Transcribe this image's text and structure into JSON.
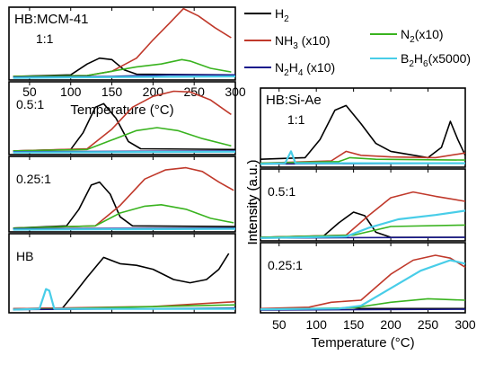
{
  "colors": {
    "H2": "#000000",
    "NH3": "#c0392b",
    "N2": "#39b31f",
    "N2H4": "#1a1a8c",
    "B2H6": "#48cde8"
  },
  "legend": [
    {
      "key": "H2",
      "label": "H",
      "sub": "2",
      "suffix": ""
    },
    {
      "key": "NH3",
      "label": "NH",
      "sub": "3",
      "suffix": " (x10)"
    },
    {
      "key": "N2H4",
      "label": "N",
      "sub": "2",
      "mid": "H",
      "sub2": "4",
      "suffix": " (x10)"
    },
    {
      "key": "N2",
      "label": "N",
      "sub": "2",
      "suffix": "(x10)"
    },
    {
      "key": "B2H6",
      "label": "B",
      "sub": "2",
      "mid": "H",
      "sub2": "6",
      "suffix": "(x5000)"
    }
  ],
  "chart_data": [
    {
      "type": "line",
      "title": "HB:MCM-41",
      "panel_label": "1:1",
      "xlim": [
        25,
        300
      ],
      "x_ticks": [
        "50",
        "100",
        "150",
        "200",
        "250",
        "300"
      ],
      "xlabel": "Temperature (°C)",
      "ylabel": "Intensity (a.u.)",
      "series": [
        {
          "key": "H2",
          "points": [
            [
              30,
              0.05
            ],
            [
              100,
              0.07
            ],
            [
              120,
              0.22
            ],
            [
              135,
              0.3
            ],
            [
              150,
              0.28
            ],
            [
              165,
              0.14
            ],
            [
              180,
              0.08
            ],
            [
              300,
              0.07
            ]
          ]
        },
        {
          "key": "NH3",
          "points": [
            [
              30,
              0.05
            ],
            [
              120,
              0.06
            ],
            [
              150,
              0.12
            ],
            [
              180,
              0.3
            ],
            [
              200,
              0.55
            ],
            [
              220,
              0.78
            ],
            [
              237,
              0.98
            ],
            [
              255,
              0.88
            ],
            [
              275,
              0.72
            ],
            [
              295,
              0.58
            ]
          ]
        },
        {
          "key": "N2",
          "points": [
            [
              30,
              0.05
            ],
            [
              120,
              0.06
            ],
            [
              150,
              0.12
            ],
            [
              180,
              0.18
            ],
            [
              210,
              0.22
            ],
            [
              235,
              0.28
            ],
            [
              245,
              0.26
            ],
            [
              270,
              0.16
            ],
            [
              295,
              0.11
            ]
          ]
        },
        {
          "key": "N2H4",
          "points": [
            [
              30,
              0.04
            ],
            [
              150,
              0.05
            ],
            [
              220,
              0.07
            ],
            [
              300,
              0.07
            ]
          ]
        },
        {
          "key": "B2H6",
          "points": [
            [
              30,
              0.03
            ],
            [
              150,
              0.04
            ],
            [
              300,
              0.05
            ]
          ]
        }
      ]
    },
    {
      "type": "line",
      "panel_label": "0.5:1",
      "xlim": [
        25,
        300
      ],
      "series": [
        {
          "key": "H2",
          "points": [
            [
              30,
              0.05
            ],
            [
              100,
              0.07
            ],
            [
              115,
              0.3
            ],
            [
              130,
              0.65
            ],
            [
              140,
              0.7
            ],
            [
              155,
              0.5
            ],
            [
              170,
              0.18
            ],
            [
              185,
              0.08
            ],
            [
              300,
              0.07
            ]
          ]
        },
        {
          "key": "NH3",
          "points": [
            [
              30,
              0.05
            ],
            [
              120,
              0.08
            ],
            [
              150,
              0.35
            ],
            [
              175,
              0.65
            ],
            [
              200,
              0.8
            ],
            [
              225,
              0.87
            ],
            [
              245,
              0.86
            ],
            [
              270,
              0.75
            ],
            [
              295,
              0.55
            ]
          ]
        },
        {
          "key": "N2",
          "points": [
            [
              30,
              0.05
            ],
            [
              120,
              0.07
            ],
            [
              150,
              0.2
            ],
            [
              180,
              0.33
            ],
            [
              205,
              0.37
            ],
            [
              230,
              0.33
            ],
            [
              260,
              0.22
            ],
            [
              295,
              0.12
            ]
          ]
        },
        {
          "key": "N2H4",
          "points": [
            [
              30,
              0.04
            ],
            [
              300,
              0.05
            ]
          ]
        },
        {
          "key": "B2H6",
          "points": [
            [
              30,
              0.03
            ],
            [
              300,
              0.04
            ]
          ]
        }
      ]
    },
    {
      "type": "line",
      "panel_label": "0.25:1",
      "xlim": [
        25,
        300
      ],
      "series": [
        {
          "key": "H2",
          "points": [
            [
              30,
              0.05
            ],
            [
              95,
              0.08
            ],
            [
              110,
              0.3
            ],
            [
              125,
              0.62
            ],
            [
              135,
              0.66
            ],
            [
              148,
              0.5
            ],
            [
              160,
              0.2
            ],
            [
              175,
              0.08
            ],
            [
              300,
              0.07
            ]
          ]
        },
        {
          "key": "NH3",
          "points": [
            [
              30,
              0.05
            ],
            [
              130,
              0.08
            ],
            [
              160,
              0.35
            ],
            [
              190,
              0.7
            ],
            [
              215,
              0.82
            ],
            [
              240,
              0.85
            ],
            [
              260,
              0.8
            ],
            [
              280,
              0.66
            ],
            [
              298,
              0.55
            ]
          ]
        },
        {
          "key": "N2",
          "points": [
            [
              30,
              0.05
            ],
            [
              130,
              0.08
            ],
            [
              160,
              0.25
            ],
            [
              190,
              0.34
            ],
            [
              210,
              0.36
            ],
            [
              240,
              0.3
            ],
            [
              270,
              0.18
            ],
            [
              298,
              0.12
            ]
          ]
        },
        {
          "key": "N2H4",
          "points": [
            [
              30,
              0.04
            ],
            [
              300,
              0.05
            ]
          ]
        },
        {
          "key": "B2H6",
          "points": [
            [
              30,
              0.03
            ],
            [
              300,
              0.04
            ]
          ]
        }
      ]
    },
    {
      "type": "line",
      "panel_label": "HB",
      "xlim": [
        25,
        300
      ],
      "series": [
        {
          "key": "H2",
          "points": [
            [
              30,
              0.05
            ],
            [
              90,
              0.06
            ],
            [
              105,
              0.25
            ],
            [
              120,
              0.45
            ],
            [
              140,
              0.7
            ],
            [
              160,
              0.62
            ],
            [
              180,
              0.6
            ],
            [
              200,
              0.55
            ],
            [
              225,
              0.42
            ],
            [
              245,
              0.38
            ],
            [
              265,
              0.42
            ],
            [
              280,
              0.55
            ],
            [
              292,
              0.75
            ]
          ]
        },
        {
          "key": "NH3",
          "points": [
            [
              30,
              0.05
            ],
            [
              200,
              0.08
            ],
            [
              300,
              0.14
            ]
          ]
        },
        {
          "key": "N2",
          "points": [
            [
              30,
              0.04
            ],
            [
              300,
              0.1
            ]
          ]
        },
        {
          "key": "N2H4",
          "points": [
            [
              30,
              0.04
            ],
            [
              300,
              0.06
            ]
          ]
        },
        {
          "key": "B2H6",
          "points": [
            [
              30,
              0.04
            ],
            [
              62,
              0.05
            ],
            [
              70,
              0.3
            ],
            [
              74,
              0.28
            ],
            [
              80,
              0.05
            ],
            [
              300,
              0.05
            ]
          ]
        }
      ]
    },
    {
      "type": "line",
      "title": "HB:Si-Ae",
      "panel_label": "1:1",
      "xlim": [
        25,
        300
      ],
      "series": [
        {
          "key": "H2",
          "points": [
            [
              25,
              0.1
            ],
            [
              85,
              0.12
            ],
            [
              105,
              0.35
            ],
            [
              125,
              0.72
            ],
            [
              140,
              0.78
            ],
            [
              160,
              0.55
            ],
            [
              180,
              0.3
            ],
            [
              200,
              0.2
            ],
            [
              250,
              0.12
            ],
            [
              268,
              0.25
            ],
            [
              280,
              0.58
            ],
            [
              290,
              0.35
            ],
            [
              300,
              0.15
            ]
          ]
        },
        {
          "key": "NH3",
          "points": [
            [
              25,
              0.05
            ],
            [
              120,
              0.08
            ],
            [
              140,
              0.2
            ],
            [
              160,
              0.15
            ],
            [
              200,
              0.13
            ],
            [
              260,
              0.12
            ],
            [
              300,
              0.18
            ]
          ]
        },
        {
          "key": "N2",
          "points": [
            [
              25,
              0.05
            ],
            [
              130,
              0.07
            ],
            [
              145,
              0.12
            ],
            [
              180,
              0.1
            ],
            [
              300,
              0.09
            ]
          ]
        },
        {
          "key": "N2H4",
          "points": [
            [
              25,
              0.04
            ],
            [
              300,
              0.05
            ]
          ]
        },
        {
          "key": "B2H6",
          "points": [
            [
              25,
              0.04
            ],
            [
              58,
              0.05
            ],
            [
              66,
              0.2
            ],
            [
              72,
              0.05
            ],
            [
              300,
              0.05
            ]
          ]
        }
      ]
    },
    {
      "type": "line",
      "panel_label": "0.5:1",
      "xlim": [
        25,
        300
      ],
      "series": [
        {
          "key": "H2",
          "points": [
            [
              25,
              0.05
            ],
            [
              110,
              0.07
            ],
            [
              130,
              0.25
            ],
            [
              150,
              0.4
            ],
            [
              165,
              0.35
            ],
            [
              180,
              0.12
            ],
            [
              200,
              0.05
            ],
            [
              300,
              0.05
            ]
          ]
        },
        {
          "key": "NH3",
          "points": [
            [
              25,
              0.05
            ],
            [
              140,
              0.08
            ],
            [
              170,
              0.35
            ],
            [
              200,
              0.6
            ],
            [
              230,
              0.68
            ],
            [
              260,
              0.62
            ],
            [
              300,
              0.55
            ]
          ]
        },
        {
          "key": "N2",
          "points": [
            [
              25,
              0.05
            ],
            [
              150,
              0.08
            ],
            [
              200,
              0.2
            ],
            [
              300,
              0.22
            ]
          ]
        },
        {
          "key": "N2H4",
          "points": [
            [
              25,
              0.04
            ],
            [
              300,
              0.05
            ]
          ]
        },
        {
          "key": "B2H6",
          "points": [
            [
              25,
              0.04
            ],
            [
              140,
              0.06
            ],
            [
              170,
              0.18
            ],
            [
              210,
              0.3
            ],
            [
              260,
              0.36
            ],
            [
              300,
              0.42
            ]
          ]
        }
      ]
    },
    {
      "type": "line",
      "panel_label": "0.25:1",
      "xlim": [
        25,
        300
      ],
      "x_ticks": [
        "50",
        "100",
        "150",
        "200",
        "250",
        "300"
      ],
      "xlabel": "Temperature (°C)",
      "ylabel": "Intensity (a.u.)",
      "series": [
        {
          "key": "H2",
          "points": [
            [
              25,
              0.05
            ],
            [
              130,
              0.06
            ],
            [
              145,
              0.08
            ],
            [
              160,
              0.06
            ],
            [
              300,
              0.06
            ]
          ]
        },
        {
          "key": "NH3",
          "points": [
            [
              25,
              0.06
            ],
            [
              90,
              0.08
            ],
            [
              120,
              0.15
            ],
            [
              160,
              0.18
            ],
            [
              200,
              0.55
            ],
            [
              230,
              0.75
            ],
            [
              260,
              0.82
            ],
            [
              280,
              0.78
            ],
            [
              300,
              0.65
            ]
          ]
        },
        {
          "key": "N2",
          "points": [
            [
              25,
              0.05
            ],
            [
              150,
              0.07
            ],
            [
              200,
              0.15
            ],
            [
              250,
              0.2
            ],
            [
              300,
              0.18
            ]
          ]
        },
        {
          "key": "N2H4",
          "points": [
            [
              25,
              0.04
            ],
            [
              300,
              0.05
            ]
          ]
        },
        {
          "key": "B2H6",
          "points": [
            [
              25,
              0.05
            ],
            [
              130,
              0.06
            ],
            [
              160,
              0.1
            ],
            [
              200,
              0.35
            ],
            [
              240,
              0.6
            ],
            [
              280,
              0.75
            ],
            [
              300,
              0.7
            ]
          ]
        }
      ]
    }
  ]
}
